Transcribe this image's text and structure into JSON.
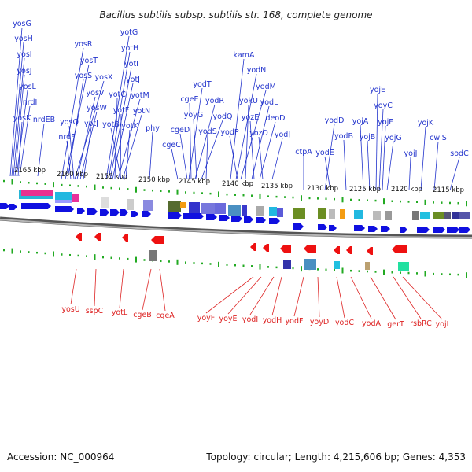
{
  "title": "Bacillus subtilis subsp. subtilis str. 168, complete genome",
  "accession_text": "Accession: NC_000964",
  "summary_text": "Topology: circular; Length: 4,215,606 bp; Genes: 4,353",
  "colors": {
    "forward_gene": "#1010e0",
    "reverse_gene": "#ee1111",
    "forward_label": "#2233cc",
    "reverse_label": "#dd2222",
    "tick_dot": "#22aa22",
    "backbone": "#888888"
  },
  "coordinate_ticks": [
    "2165 kbp",
    "2160 kbp",
    "2155 kbp",
    "2150 kbp",
    "2145 kbp",
    "2140 kbp",
    "2135 kbp",
    "2130 kbp",
    "2125 kbp",
    "2120 kbp",
    "2115 kbp"
  ],
  "forward_genes": [
    "yosG",
    "yosH",
    "yosI",
    "yosJ",
    "yosL",
    "nrdI",
    "yosK",
    "nrdEB",
    "yosR",
    "yosT",
    "yosS",
    "yosX",
    "yosV",
    "yosW",
    "yosQ",
    "yotJ",
    "yotG",
    "yotH",
    "yotI",
    "yotJ",
    "yotC",
    "yotM",
    "yotF",
    "yotN",
    "yotB",
    "yotK",
    "nrdF",
    "phy",
    "yodT",
    "cgeE",
    "yodR",
    "yoyG",
    "yodQ",
    "cgeD",
    "yodS",
    "cgeC",
    "kamA",
    "yodN",
    "yodM",
    "yokU",
    "yodL",
    "yozE",
    "deoD",
    "yozD",
    "yodP",
    "yodJ",
    "ctpA",
    "yodD",
    "yodE",
    "yodB",
    "yojA",
    "yojB",
    "yojE",
    "yoyC",
    "yojF",
    "yojG",
    "yojK",
    "yojJ",
    "cwlS",
    "sodC"
  ],
  "reverse_genes": [
    "yosU",
    "sspC",
    "yotL",
    "cgeB",
    "cgeA",
    "yoyF",
    "yoyE",
    "yodI",
    "yodH",
    "yodF",
    "yoyD",
    "yodC",
    "yodA",
    "gerT",
    "rsbRC",
    "yojI"
  ]
}
